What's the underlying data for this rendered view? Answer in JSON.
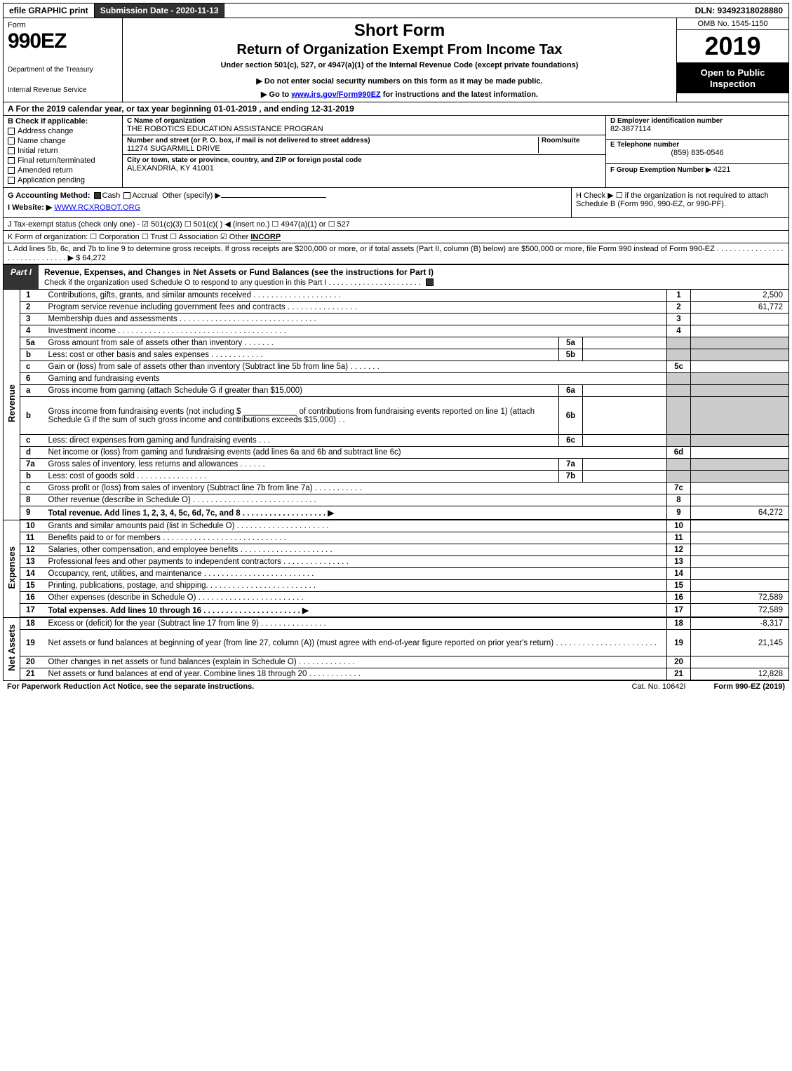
{
  "topbar": {
    "efile": "efile GRAPHIC print",
    "submission": "Submission Date - 2020-11-13",
    "dln": "DLN: 93492318028880"
  },
  "header": {
    "form_word": "Form",
    "form_num": "990EZ",
    "dept1": "Department of the Treasury",
    "dept2": "Internal Revenue Service",
    "title1": "Short Form",
    "title2": "Return of Organization Exempt From Income Tax",
    "title3": "Under section 501(c), 527, or 4947(a)(1) of the Internal Revenue Code (except private foundations)",
    "title4": "▶ Do not enter social security numbers on this form as it may be made public.",
    "title5_pre": "▶ Go to ",
    "title5_link": "www.irs.gov/Form990EZ",
    "title5_post": " for instructions and the latest information.",
    "omb": "OMB No. 1545-1150",
    "year": "2019",
    "inspection": "Open to Public Inspection"
  },
  "A": {
    "text_pre": "A  For the 2019 calendar year, or tax year beginning ",
    "begin": "01-01-2019",
    "mid": " , and ending ",
    "end": "12-31-2019"
  },
  "B": {
    "header": "B  Check if applicable:",
    "items": [
      "Address change",
      "Name change",
      "Initial return",
      "Final return/terminated",
      "Amended return",
      "Application pending"
    ]
  },
  "C": {
    "name_lbl": "C Name of organization",
    "name_val": "THE ROBOTICS EDUCATION ASSISTANCE PROGRAN",
    "addr_lbl": "Number and street (or P. O. box, if mail is not delivered to street address)",
    "room_lbl": "Room/suite",
    "addr_val": "11274 SUGARMILL DRIVE",
    "city_lbl": "City or town, state or province, country, and ZIP or foreign postal code",
    "city_val": "ALEXANDRIA, KY  41001"
  },
  "D": {
    "lbl": "D Employer identification number",
    "val": "82-3877114"
  },
  "E": {
    "lbl": "E Telephone number",
    "val": "(859) 835-0546"
  },
  "F": {
    "lbl": "F Group Exemption Number  ▶",
    "val": "4221"
  },
  "G": {
    "lbl": "G Accounting Method:",
    "cash": "Cash",
    "accrual": "Accrual",
    "other": "Other (specify) ▶"
  },
  "H": {
    "text": "H  Check ▶  ☐  if the organization is not required to attach Schedule B (Form 990, 990-EZ, or 990-PF)."
  },
  "I": {
    "lbl": "I Website: ▶",
    "val": "WWW.RCXROBOT.ORG"
  },
  "J": {
    "text": "J Tax-exempt status (check only one) - ☑ 501(c)(3)  ☐ 501(c)(  ) ◀ (insert no.)  ☐ 4947(a)(1) or  ☐ 527"
  },
  "K": {
    "text": "K Form of organization:   ☐ Corporation   ☐ Trust   ☐ Association   ☑ Other ",
    "other": "INCORP"
  },
  "L": {
    "text": "L Add lines 5b, 6c, and 7b to line 9 to determine gross receipts. If gross receipts are $200,000 or more, or if total assets (Part II, column (B) below) are $500,000 or more, file Form 990 instead of Form 990-EZ  .  .  .  .  .  .  .  .  .  .  .  .  .  .  .  .  .  .  .  .  .  .  .  .  .  .  .  .  .  .  ▶ $ ",
    "val": "64,272"
  },
  "partI": {
    "tag": "Part I",
    "title": "Revenue, Expenses, and Changes in Net Assets or Fund Balances (see the instructions for Part I)",
    "sub": "Check if the organization used Schedule O to respond to any question in this Part I  .  .  .  .  .  .  .  .  .  .  .  .  .  .  .  .  .  .  .  .  .  ."
  },
  "side": {
    "rev": "Revenue",
    "exp": "Expenses",
    "net": "Net Assets"
  },
  "rows": [
    {
      "n": "1",
      "d": "Contributions, gifts, grants, and similar amounts received  .  .  .  .  .  .  .  .  .  .  .  .  .  .  .  .  .  .  .  .",
      "r": "1",
      "v": "2,500"
    },
    {
      "n": "2",
      "d": "Program service revenue including government fees and contracts  .  .  .  .  .  .  .  .  .  .  .  .  .  .  .  .",
      "r": "2",
      "v": "61,772"
    },
    {
      "n": "3",
      "d": "Membership dues and assessments  .  .  .  .  .  .  .  .  .  .  .  .  .  .  .  .  .  .  .  .  .  .  .  .  .  .  .  .  .  .  .",
      "r": "3",
      "v": ""
    },
    {
      "n": "4",
      "d": "Investment income  .  .  .  .  .  .  .  .  .  .  .  .  .  .  .  .  .  .  .  .  .  .  .  .  .  .  .  .  .  .  .  .  .  .  .  .  .  .",
      "r": "4",
      "v": ""
    },
    {
      "n": "5a",
      "d": "Gross amount from sale of assets other than inventory  .  .  .  .  .  .  .",
      "sub": "5a",
      "subv": "",
      "grey": true
    },
    {
      "n": "b",
      "d": "Less: cost or other basis and sales expenses  .  .  .  .  .  .  .  .  .  .  .  .",
      "sub": "5b",
      "subv": "",
      "grey": true
    },
    {
      "n": "c",
      "d": "Gain or (loss) from sale of assets other than inventory (Subtract line 5b from line 5a)  .  .  .  .  .  .  .",
      "r": "5c",
      "v": ""
    },
    {
      "n": "6",
      "d": "Gaming and fundraising events",
      "grey": true,
      "noline": true
    },
    {
      "n": "a",
      "d": "Gross income from gaming (attach Schedule G if greater than $15,000)",
      "sub": "6a",
      "subv": "",
      "grey": true
    },
    {
      "n": "b",
      "d": "Gross income from fundraising events (not including $ ____________ of contributions from fundraising events reported on line 1) (attach Schedule G if the sum of such gross income and contributions exceeds $15,000)    .   .",
      "sub": "6b",
      "subv": "",
      "grey": true,
      "tall": true
    },
    {
      "n": "c",
      "d": "Less: direct expenses from gaming and fundraising events     .   .   .",
      "sub": "6c",
      "subv": "",
      "grey": true
    },
    {
      "n": "d",
      "d": "Net income or (loss) from gaming and fundraising events (add lines 6a and 6b and subtract line 6c)",
      "r": "6d",
      "v": ""
    },
    {
      "n": "7a",
      "d": "Gross sales of inventory, less returns and allowances  .  .  .  .  .  .",
      "sub": "7a",
      "subv": "",
      "grey": true
    },
    {
      "n": "b",
      "d": "Less: cost of goods sold         .  .  .  .  .  .  .  .  .  .  .  .  .  .  .  .",
      "sub": "7b",
      "subv": "",
      "grey": true
    },
    {
      "n": "c",
      "d": "Gross profit or (loss) from sales of inventory (Subtract line 7b from line 7a)  .  .  .  .  .  .  .  .  .  .  .",
      "r": "7c",
      "v": ""
    },
    {
      "n": "8",
      "d": "Other revenue (describe in Schedule O)  .  .  .  .  .  .  .  .  .  .  .  .  .  .  .  .  .  .  .  .  .  .  .  .  .  .  .  .",
      "r": "8",
      "v": ""
    },
    {
      "n": "9",
      "d": "Total revenue. Add lines 1, 2, 3, 4, 5c, 6d, 7c, and 8   .  .  .  .  .  .  .  .  .  .  .  .  .  .  .  .  .  .  .       ▶",
      "r": "9",
      "v": "64,272",
      "bold": true,
      "sep": true
    },
    {
      "n": "10",
      "d": "Grants and similar amounts paid (list in Schedule O)  .  .  .  .  .  .  .  .  .  .  .  .  .  .  .  .  .  .  .  .  .",
      "r": "10",
      "v": ""
    },
    {
      "n": "11",
      "d": "Benefits paid to or for members       .  .  .  .  .  .  .  .  .  .  .  .  .  .  .  .  .  .  .  .  .  .  .  .  .  .  .  .",
      "r": "11",
      "v": ""
    },
    {
      "n": "12",
      "d": "Salaries, other compensation, and employee benefits  .  .  .  .  .  .  .  .  .  .  .  .  .  .  .  .  .  .  .  .  .",
      "r": "12",
      "v": ""
    },
    {
      "n": "13",
      "d": "Professional fees and other payments to independent contractors  .  .  .  .  .  .  .  .  .  .  .  .  .  .  .",
      "r": "13",
      "v": ""
    },
    {
      "n": "14",
      "d": "Occupancy, rent, utilities, and maintenance  .  .  .  .  .  .  .  .  .  .  .  .  .  .  .  .  .  .  .  .  .  .  .  .  .",
      "r": "14",
      "v": ""
    },
    {
      "n": "15",
      "d": "Printing, publications, postage, and shipping.  .  .  .  .  .  .  .  .  .  .  .  .  .  .  .  .  .  .  .  .  .  .  .  .",
      "r": "15",
      "v": ""
    },
    {
      "n": "16",
      "d": "Other expenses (describe in Schedule O)      .  .  .  .  .  .  .  .  .  .  .  .  .  .  .  .  .  .  .  .  .  .  .  .",
      "r": "16",
      "v": "72,589"
    },
    {
      "n": "17",
      "d": "Total expenses. Add lines 10 through 16     .  .  .  .  .  .  .  .  .  .  .  .  .  .  .  .  .  .  .  .  .  .     ▶",
      "r": "17",
      "v": "72,589",
      "bold": true,
      "sep": true
    },
    {
      "n": "18",
      "d": "Excess or (deficit) for the year (Subtract line 17 from line 9)        .  .  .  .  .  .  .  .  .  .  .  .  .  .  .",
      "r": "18",
      "v": "-8,317"
    },
    {
      "n": "19",
      "d": "Net assets or fund balances at beginning of year (from line 27, column (A)) (must agree with end-of-year figure reported on prior year's return)  .  .  .  .  .  .  .  .  .  .  .  .  .  .  .  .  .  .  .  .  .  .  .",
      "r": "19",
      "v": "21,145",
      "tall": true
    },
    {
      "n": "20",
      "d": "Other changes in net assets or fund balances (explain in Schedule O)  .  .  .  .  .  .  .  .  .  .  .  .  .",
      "r": "20",
      "v": ""
    },
    {
      "n": "21",
      "d": "Net assets or fund balances at end of year. Combine lines 18 through 20  .  .  .  .  .  .  .  .  .  .  .  .",
      "r": "21",
      "v": "12,828",
      "sep": true
    }
  ],
  "footer": {
    "left": "For Paperwork Reduction Act Notice, see the separate instructions.",
    "mid": "Cat. No. 10642I",
    "right": "Form 990-EZ (2019)"
  }
}
